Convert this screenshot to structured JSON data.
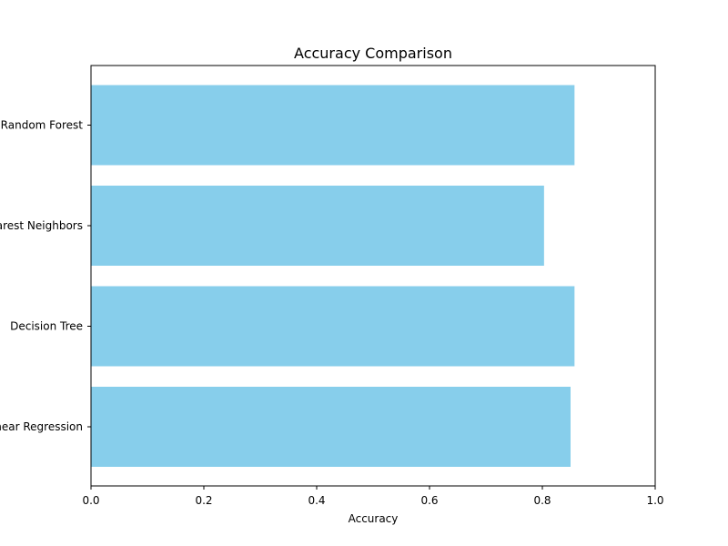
{
  "chart_data": {
    "type": "bar",
    "orientation": "horizontal",
    "title": "Accuracy Comparison",
    "xlabel": "Accuracy",
    "ylabel": "",
    "categories": [
      "Linear Regression",
      "Decision Tree",
      "K-Nearest Neighbors",
      "Random Forest"
    ],
    "values": [
      0.85,
      0.857,
      0.803,
      0.857
    ],
    "xlim": [
      0.0,
      1.0
    ],
    "xticks": [
      "0.0",
      "0.2",
      "0.4",
      "0.6",
      "0.8",
      "1.0"
    ],
    "grid": false,
    "legend": "none",
    "bar_color": "#87ceeb"
  }
}
